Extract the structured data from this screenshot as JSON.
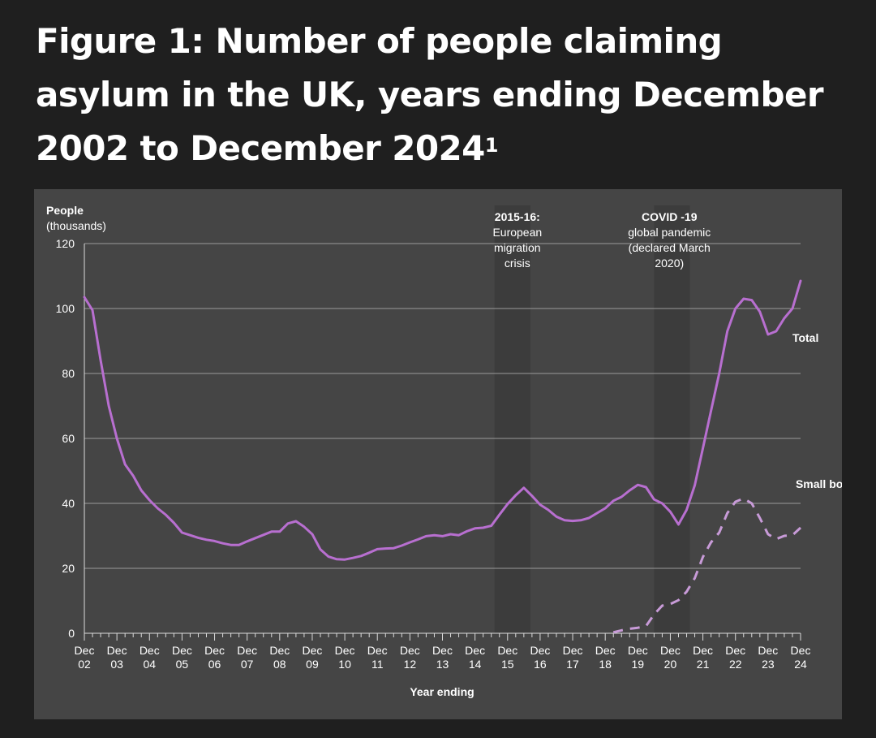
{
  "header": {
    "title": "Figure 1: Number of people claiming asylum in the UK, years ending December 2002 to December 2024",
    "title_footnote": "1"
  },
  "chart_data": {
    "type": "line",
    "ylabel_line1": "People",
    "ylabel_line2": "(thousands)",
    "xlabel": "Year ending",
    "ylim": [
      0,
      120
    ],
    "yticks": [
      0,
      20,
      40,
      60,
      80,
      100,
      120
    ],
    "xlim": [
      2002.0,
      2024.0
    ],
    "grid": true,
    "xticks": [
      {
        "x": 2002,
        "line1": "Dec",
        "line2": "02"
      },
      {
        "x": 2003,
        "line1": "Dec",
        "line2": "03"
      },
      {
        "x": 2004,
        "line1": "Dec",
        "line2": "04"
      },
      {
        "x": 2005,
        "line1": "Dec",
        "line2": "05"
      },
      {
        "x": 2006,
        "line1": "Dec",
        "line2": "06"
      },
      {
        "x": 2007,
        "line1": "Dec",
        "line2": "07"
      },
      {
        "x": 2008,
        "line1": "Dec",
        "line2": "08"
      },
      {
        "x": 2009,
        "line1": "Dec",
        "line2": "09"
      },
      {
        "x": 2010,
        "line1": "Dec",
        "line2": "10"
      },
      {
        "x": 2011,
        "line1": "Dec",
        "line2": "11"
      },
      {
        "x": 2012,
        "line1": "Dec",
        "line2": "12"
      },
      {
        "x": 2013,
        "line1": "Dec",
        "line2": "13"
      },
      {
        "x": 2014,
        "line1": "Dec",
        "line2": "14"
      },
      {
        "x": 2015,
        "line1": "Dec",
        "line2": "15"
      },
      {
        "x": 2016,
        "line1": "Dec",
        "line2": "16"
      },
      {
        "x": 2017,
        "line1": "Dec",
        "line2": "17"
      },
      {
        "x": 2018,
        "line1": "Dec",
        "line2": "18"
      },
      {
        "x": 2019,
        "line1": "Dec",
        "line2": "19"
      },
      {
        "x": 2020,
        "line1": "Dec",
        "line2": "20"
      },
      {
        "x": 2021,
        "line1": "Dec",
        "line2": "21"
      },
      {
        "x": 2022,
        "line1": "Dec",
        "line2": "22"
      },
      {
        "x": 2023,
        "line1": "Dec",
        "line2": "23"
      },
      {
        "x": 2024,
        "line1": "Dec",
        "line2": "24"
      }
    ],
    "shaded_periods": [
      {
        "start": 2014.6,
        "end": 2015.7
      },
      {
        "start": 2019.5,
        "end": 2020.6
      }
    ],
    "annotations": [
      {
        "x": 2015.3,
        "lines": [
          "2015-16:",
          "European",
          "migration",
          "crisis"
        ]
      },
      {
        "x": 2019.97,
        "lines": [
          "COVID -19",
          "global pandemic",
          "(declared March",
          "2020)"
        ]
      }
    ],
    "series": [
      {
        "name": "Total",
        "color": "#b86fd0",
        "style": "solid",
        "points": [
          [
            2002.0,
            103.5
          ],
          [
            2002.25,
            99.5
          ],
          [
            2002.5,
            84.0
          ],
          [
            2002.75,
            70.0
          ],
          [
            2003.0,
            60.0
          ],
          [
            2003.25,
            52.0
          ],
          [
            2003.5,
            48.5
          ],
          [
            2003.75,
            44.0
          ],
          [
            2004.0,
            41.0
          ],
          [
            2004.25,
            38.5
          ],
          [
            2004.5,
            36.5
          ],
          [
            2004.75,
            34.0
          ],
          [
            2005.0,
            31.0
          ],
          [
            2005.25,
            30.2
          ],
          [
            2005.5,
            29.4
          ],
          [
            2005.75,
            28.8
          ],
          [
            2006.0,
            28.4
          ],
          [
            2006.25,
            27.7
          ],
          [
            2006.5,
            27.2
          ],
          [
            2006.75,
            27.2
          ],
          [
            2007.0,
            28.3
          ],
          [
            2007.25,
            29.3
          ],
          [
            2007.5,
            30.3
          ],
          [
            2007.75,
            31.3
          ],
          [
            2008.0,
            31.3
          ],
          [
            2008.25,
            33.8
          ],
          [
            2008.5,
            34.5
          ],
          [
            2008.75,
            32.8
          ],
          [
            2009.0,
            30.5
          ],
          [
            2009.25,
            25.8
          ],
          [
            2009.5,
            23.6
          ],
          [
            2009.75,
            22.8
          ],
          [
            2010.0,
            22.7
          ],
          [
            2010.25,
            23.2
          ],
          [
            2010.5,
            23.8
          ],
          [
            2010.75,
            24.8
          ],
          [
            2011.0,
            25.9
          ],
          [
            2011.25,
            26.1
          ],
          [
            2011.5,
            26.2
          ],
          [
            2011.75,
            27.0
          ],
          [
            2012.0,
            28.0
          ],
          [
            2012.25,
            28.9
          ],
          [
            2012.5,
            29.9
          ],
          [
            2012.75,
            30.2
          ],
          [
            2013.0,
            29.9
          ],
          [
            2013.25,
            30.5
          ],
          [
            2013.5,
            30.2
          ],
          [
            2013.75,
            31.4
          ],
          [
            2014.0,
            32.3
          ],
          [
            2014.25,
            32.5
          ],
          [
            2014.5,
            33.1
          ],
          [
            2014.75,
            36.5
          ],
          [
            2015.0,
            39.8
          ],
          [
            2015.25,
            42.5
          ],
          [
            2015.5,
            44.8
          ],
          [
            2015.75,
            42.3
          ],
          [
            2016.0,
            39.6
          ],
          [
            2016.25,
            38.0
          ],
          [
            2016.5,
            35.9
          ],
          [
            2016.75,
            34.8
          ],
          [
            2017.0,
            34.6
          ],
          [
            2017.25,
            34.8
          ],
          [
            2017.5,
            35.5
          ],
          [
            2017.75,
            37.0
          ],
          [
            2018.0,
            38.5
          ],
          [
            2018.25,
            40.8
          ],
          [
            2018.5,
            42.0
          ],
          [
            2018.75,
            44.0
          ],
          [
            2019.0,
            45.7
          ],
          [
            2019.25,
            45.0
          ],
          [
            2019.5,
            41.2
          ],
          [
            2019.75,
            40.0
          ],
          [
            2020.0,
            37.4
          ],
          [
            2020.25,
            33.5
          ],
          [
            2020.5,
            38.0
          ],
          [
            2020.75,
            45.6
          ],
          [
            2021.0,
            57.0
          ],
          [
            2021.25,
            68.5
          ],
          [
            2021.5,
            80.0
          ],
          [
            2021.75,
            93.0
          ],
          [
            2022.0,
            100.0
          ],
          [
            2022.25,
            103.0
          ],
          [
            2022.5,
            102.6
          ],
          [
            2022.75,
            99.0
          ],
          [
            2023.0,
            92.0
          ],
          [
            2023.25,
            93.0
          ],
          [
            2023.5,
            97.0
          ],
          [
            2023.75,
            100.0
          ],
          [
            2024.0,
            108.5
          ]
        ]
      },
      {
        "name": "Small boats",
        "color": "#c89bd8",
        "style": "dashed",
        "points": [
          [
            2018.25,
            0.3
          ],
          [
            2018.5,
            0.9
          ],
          [
            2018.75,
            1.4
          ],
          [
            2019.0,
            1.7
          ],
          [
            2019.25,
            2.2
          ],
          [
            2019.5,
            5.8
          ],
          [
            2019.75,
            8.5
          ],
          [
            2020.0,
            9.0
          ],
          [
            2020.25,
            10.2
          ],
          [
            2020.5,
            12.8
          ],
          [
            2020.75,
            17.0
          ],
          [
            2021.0,
            23.5
          ],
          [
            2021.25,
            28.0
          ],
          [
            2021.5,
            31.0
          ],
          [
            2021.75,
            37.0
          ],
          [
            2022.0,
            40.5
          ],
          [
            2022.25,
            41.5
          ],
          [
            2022.5,
            40.0
          ],
          [
            2022.75,
            35.5
          ],
          [
            2023.0,
            30.5
          ],
          [
            2023.25,
            29.0
          ],
          [
            2023.5,
            30.0
          ],
          [
            2023.75,
            30.2
          ],
          [
            2024.0,
            32.5
          ]
        ]
      }
    ],
    "series_labels": [
      {
        "text": "Total",
        "x": 2023.75,
        "y": 89.8
      },
      {
        "text": "Small boats",
        "x": 2023.85,
        "y": 44.7
      }
    ]
  }
}
